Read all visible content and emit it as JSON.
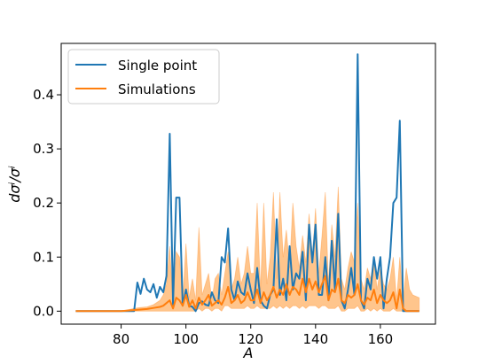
{
  "chart_data": {
    "type": "line",
    "xlabel": "A",
    "ylabel": "dσⁱ/σⁱ",
    "xlim": [
      61.5,
      177.0
    ],
    "ylim": [
      -0.024,
      0.495
    ],
    "xticks": [
      80,
      100,
      120,
      140,
      160
    ],
    "yticks": [
      0.0,
      0.1,
      0.2,
      0.3,
      0.4
    ],
    "ytick_labels": [
      "0.0",
      "0.1",
      "0.2",
      "0.3",
      "0.4"
    ],
    "grid": false,
    "legend_position": "top-left",
    "colors": {
      "single": "#1f77b4",
      "sim": "#ff7f0e",
      "band": "#ffbb78"
    },
    "series": [
      {
        "name": "Single point",
        "color": "#1f77b4",
        "x": [
          66,
          70,
          75,
          80,
          84,
          85,
          86,
          87,
          88,
          89,
          90,
          91,
          92,
          93,
          94,
          95,
          96,
          97,
          98,
          99,
          100,
          101,
          102,
          103,
          104,
          105,
          106,
          107,
          108,
          109,
          110,
          111,
          112,
          113,
          114,
          115,
          116,
          117,
          118,
          119,
          120,
          121,
          122,
          123,
          124,
          125,
          126,
          127,
          128,
          129,
          130,
          131,
          132,
          133,
          134,
          135,
          136,
          137,
          138,
          139,
          140,
          141,
          142,
          143,
          144,
          145,
          146,
          147,
          148,
          149,
          150,
          151,
          152,
          153,
          154,
          155,
          156,
          157,
          158,
          159,
          160,
          161,
          162,
          163,
          164,
          165,
          166,
          167,
          168,
          169,
          170,
          172
        ],
        "y": [
          0.0,
          0.0,
          0.0,
          0.0,
          0.0,
          0.053,
          0.032,
          0.06,
          0.04,
          0.035,
          0.05,
          0.025,
          0.045,
          0.035,
          0.065,
          0.328,
          0.012,
          0.21,
          0.21,
          0.01,
          0.04,
          0.01,
          0.008,
          0.0,
          0.015,
          0.018,
          0.012,
          0.01,
          0.035,
          0.02,
          0.015,
          0.1,
          0.09,
          0.153,
          0.04,
          0.02,
          0.055,
          0.035,
          0.03,
          0.07,
          0.04,
          0.015,
          0.08,
          0.02,
          0.01,
          0.005,
          0.03,
          0.04,
          0.17,
          0.03,
          0.06,
          0.02,
          0.12,
          0.04,
          0.07,
          0.06,
          0.11,
          0.02,
          0.16,
          0.09,
          0.16,
          0.03,
          0.03,
          0.1,
          0.02,
          0.13,
          0.04,
          0.18,
          0.02,
          0.005,
          0.04,
          0.08,
          0.03,
          0.475,
          0.02,
          0.005,
          0.06,
          0.04,
          0.1,
          0.06,
          0.1,
          0.005,
          0.06,
          0.1,
          0.2,
          0.21,
          0.352,
          0.0,
          0.0,
          0.0,
          0.0,
          0.0
        ]
      },
      {
        "name": "Simulations",
        "color": "#ff7f0e",
        "x": [
          66,
          70,
          75,
          80,
          84,
          86,
          88,
          90,
          92,
          93,
          94,
          95,
          96,
          97,
          98,
          99,
          100,
          101,
          102,
          103,
          104,
          105,
          106,
          107,
          108,
          109,
          110,
          111,
          112,
          113,
          114,
          115,
          116,
          117,
          118,
          119,
          120,
          121,
          122,
          123,
          124,
          125,
          126,
          127,
          128,
          129,
          130,
          131,
          132,
          133,
          134,
          135,
          136,
          137,
          138,
          139,
          140,
          141,
          142,
          143,
          144,
          145,
          146,
          147,
          148,
          149,
          150,
          151,
          152,
          153,
          154,
          155,
          156,
          157,
          158,
          159,
          160,
          161,
          162,
          163,
          164,
          165,
          166,
          167,
          168,
          169,
          170,
          172
        ],
        "y": [
          0.0,
          0.0,
          0.0,
          0.0,
          0.002,
          0.003,
          0.004,
          0.006,
          0.008,
          0.01,
          0.015,
          0.02,
          0.005,
          0.025,
          0.02,
          0.01,
          0.03,
          0.008,
          0.02,
          0.005,
          0.025,
          0.012,
          0.02,
          0.03,
          0.01,
          0.015,
          0.02,
          0.012,
          0.025,
          0.045,
          0.015,
          0.02,
          0.03,
          0.015,
          0.02,
          0.035,
          0.02,
          0.02,
          0.04,
          0.015,
          0.035,
          0.02,
          0.03,
          0.045,
          0.025,
          0.04,
          0.03,
          0.05,
          0.03,
          0.045,
          0.04,
          0.03,
          0.06,
          0.035,
          0.06,
          0.04,
          0.055,
          0.035,
          0.05,
          0.065,
          0.02,
          0.04,
          0.035,
          0.06,
          0.02,
          0.015,
          0.03,
          0.025,
          0.03,
          0.05,
          0.02,
          0.012,
          0.025,
          0.02,
          0.04,
          0.015,
          0.03,
          0.02,
          0.015,
          0.02,
          0.035,
          0.005,
          0.04,
          0.005,
          0.0,
          0.0,
          0.0,
          0.0
        ],
        "band_upper": [
          0.0,
          0.0,
          0.0,
          0.0,
          0.005,
          0.007,
          0.008,
          0.012,
          0.02,
          0.03,
          0.05,
          0.12,
          0.01,
          0.11,
          0.1,
          0.02,
          0.125,
          0.025,
          0.06,
          0.02,
          0.155,
          0.03,
          0.05,
          0.07,
          0.02,
          0.06,
          0.07,
          0.03,
          0.07,
          0.11,
          0.04,
          0.06,
          0.1,
          0.05,
          0.07,
          0.12,
          0.07,
          0.07,
          0.2,
          0.04,
          0.2,
          0.05,
          0.1,
          0.22,
          0.06,
          0.22,
          0.1,
          0.15,
          0.08,
          0.2,
          0.12,
          0.08,
          0.14,
          0.09,
          0.18,
          0.1,
          0.19,
          0.07,
          0.14,
          0.22,
          0.05,
          0.16,
          0.1,
          0.23,
          0.06,
          0.04,
          0.08,
          0.11,
          0.09,
          0.2,
          0.06,
          0.04,
          0.08,
          0.06,
          0.1,
          0.04,
          0.08,
          0.05,
          0.04,
          0.06,
          0.1,
          0.02,
          0.1,
          0.02,
          0.08,
          0.04,
          0.03,
          0.025
        ],
        "band_lower": [
          0.0,
          0.0,
          0.0,
          0.0,
          0.0,
          0.0,
          0.0,
          0.0,
          0.0,
          0.0,
          0.0,
          0.0,
          0.0,
          0.0,
          0.0,
          0.0,
          0.0,
          0.0,
          0.0,
          0.0,
          0.005,
          0.0,
          0.005,
          0.005,
          0.0,
          0.005,
          0.005,
          0.0,
          0.01,
          0.01,
          0.005,
          0.005,
          0.005,
          0.005,
          0.005,
          0.01,
          0.005,
          0.005,
          0.01,
          0.005,
          0.005,
          0.005,
          0.005,
          0.01,
          0.005,
          0.01,
          0.005,
          0.01,
          0.005,
          0.01,
          0.01,
          0.005,
          0.01,
          0.005,
          0.01,
          0.01,
          0.01,
          0.005,
          0.01,
          0.01,
          0.005,
          0.005,
          0.005,
          0.01,
          0.0,
          0.0,
          0.005,
          0.005,
          0.005,
          0.01,
          0.0,
          0.0,
          0.005,
          0.0,
          0.005,
          0.0,
          0.005,
          0.0,
          0.0,
          0.0,
          0.005,
          0.0,
          0.0,
          0.0,
          0.0,
          0.0,
          0.0,
          0.0
        ]
      }
    ]
  }
}
